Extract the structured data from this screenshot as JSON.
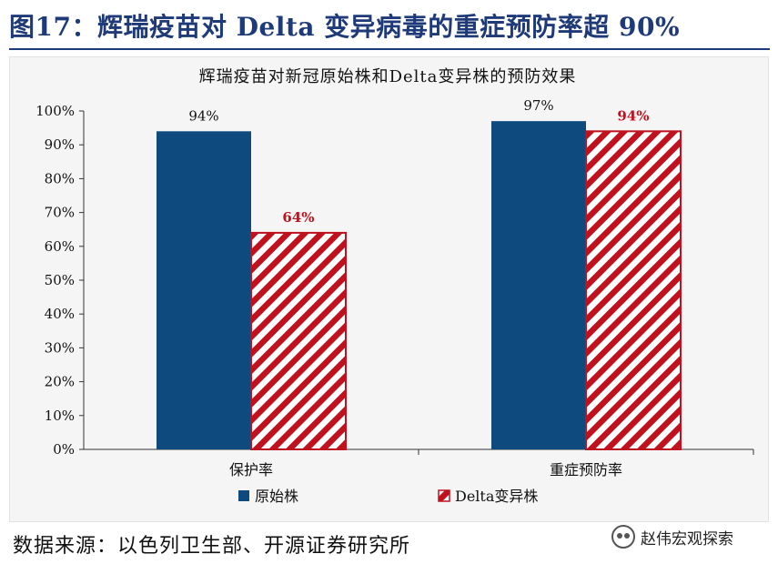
{
  "figure": {
    "title": "图17：辉瑞疫苗对 Delta 变异病毒的重症预防率超 90%",
    "source": "数据来源：以色列卫生部、开源证券研究所",
    "watermark": "赵伟宏观探索"
  },
  "colors": {
    "title_blue": "#1f3a78",
    "bar_blue": "#0e4a7e",
    "bar_red": "#c0121e",
    "label_red": "#c0121e"
  },
  "chart_data": {
    "type": "bar",
    "title": "辉瑞疫苗对新冠原始株和Delta变异株的预防效果",
    "categories": [
      "保护率",
      "重症预防率"
    ],
    "series": [
      {
        "name": "原始株",
        "values": [
          94,
          97
        ],
        "labels": [
          "94%",
          "97%"
        ],
        "pattern": "solid"
      },
      {
        "name": "Delta变异株",
        "values": [
          64,
          94
        ],
        "labels": [
          "64%",
          "94%"
        ],
        "pattern": "hatched"
      }
    ],
    "yticks": [
      "0%",
      "10%",
      "20%",
      "30%",
      "40%",
      "50%",
      "60%",
      "70%",
      "80%",
      "90%",
      "100%"
    ],
    "ylim": [
      0,
      100
    ],
    "xlabel": "",
    "ylabel": "",
    "legend_position": "bottom"
  }
}
